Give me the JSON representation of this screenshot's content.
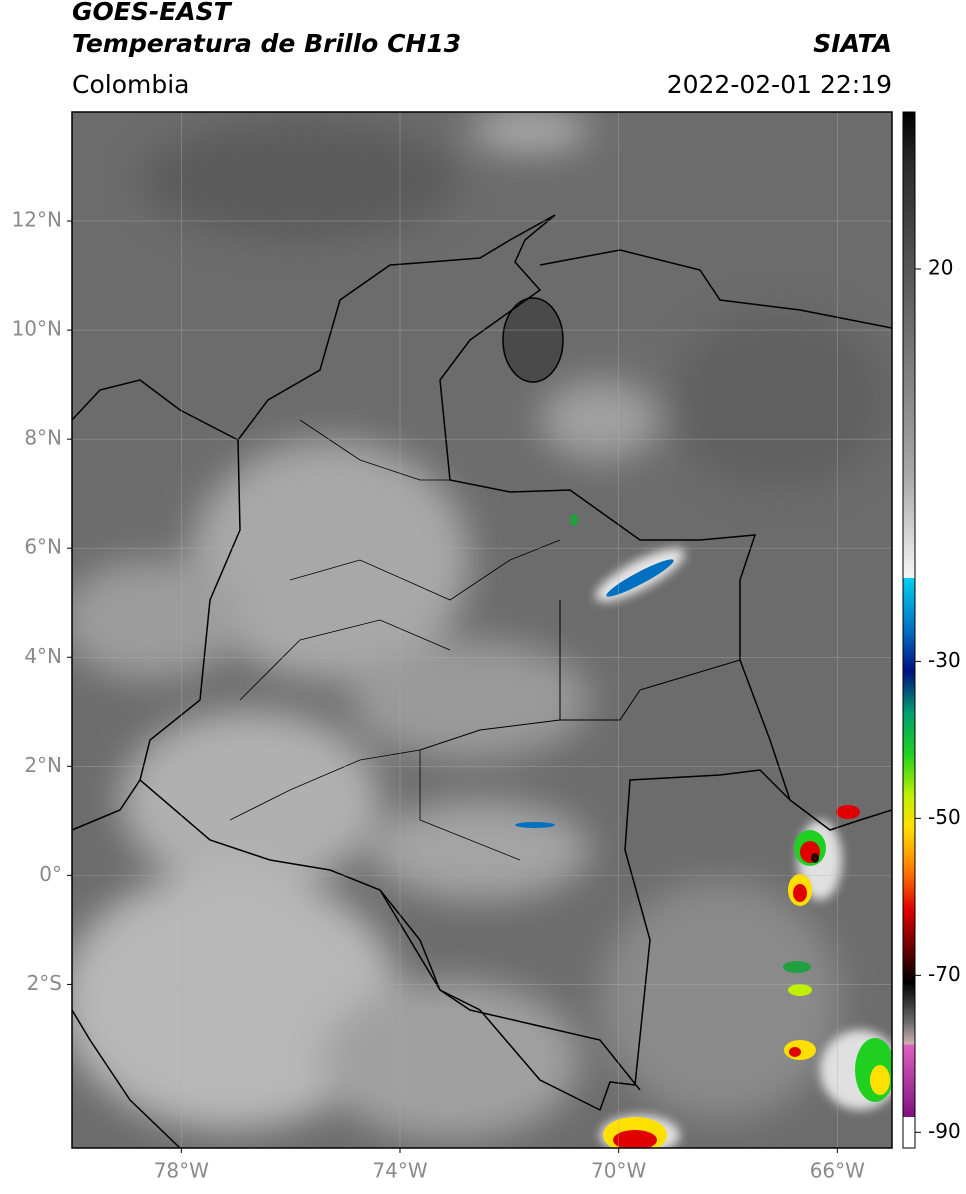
{
  "header": {
    "title": "GOES-EAST",
    "subtitle": "Temperatura de Brillo CH13",
    "source": "SIATA",
    "region": "Colombia",
    "datetime": "2022-02-01 22:19"
  },
  "map": {
    "xlim": [
      -80,
      -65
    ],
    "ylim": [
      -5,
      14
    ],
    "grid": true,
    "xticks": [
      {
        "value": -78,
        "label": "78°W"
      },
      {
        "value": -74,
        "label": "74°W"
      },
      {
        "value": -70,
        "label": "70°W"
      },
      {
        "value": -66,
        "label": "66°W"
      }
    ],
    "yticks": [
      {
        "value": 12,
        "label": "12°N"
      },
      {
        "value": 10,
        "label": "10°N"
      },
      {
        "value": 8,
        "label": "8°N"
      },
      {
        "value": 6,
        "label": "6°N"
      },
      {
        "value": 4,
        "label": "4°N"
      },
      {
        "value": 2,
        "label": "2°N"
      },
      {
        "value": 0,
        "label": "0°"
      },
      {
        "value": -2,
        "label": "2°S"
      }
    ]
  },
  "colorbar": {
    "lim": [
      -92,
      40
    ],
    "ticks": [
      20,
      -30,
      -50,
      -70,
      -90
    ]
  }
}
